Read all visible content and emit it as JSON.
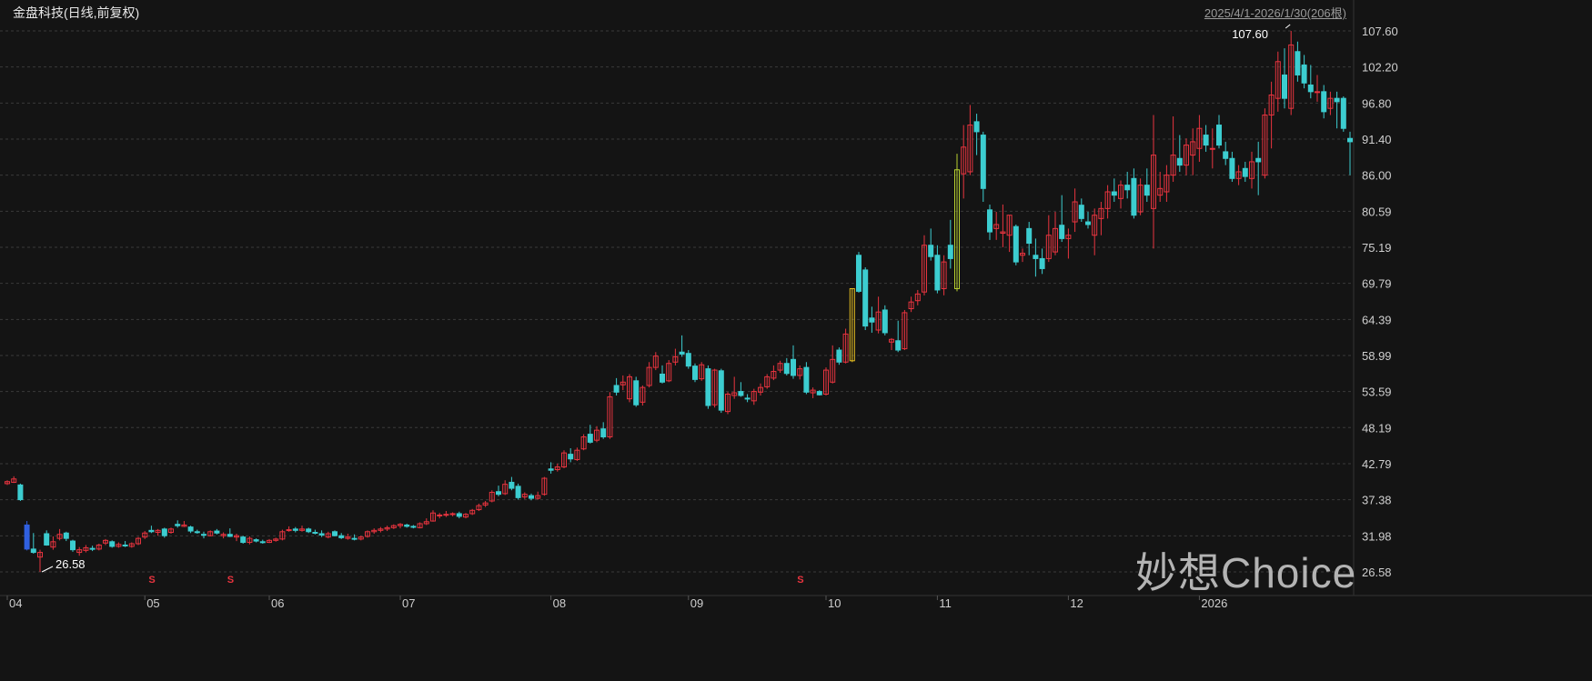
{
  "chart_data": {
    "type": "candlestick",
    "title": "金盘科技(日线,前复权)",
    "range_label": "2025/4/1-2026/1/30(206根)",
    "y_ticks": [
      "107.60",
      "102.20",
      "96.80",
      "91.40",
      "86.00",
      "80.59",
      "75.19",
      "69.79",
      "64.39",
      "58.99",
      "53.59",
      "48.19",
      "42.79",
      "37.38",
      "31.98",
      "26.58"
    ],
    "ylim": [
      26.58,
      107.6
    ],
    "x_tick_labels": [
      "04",
      "05",
      "06",
      "07",
      "08",
      "09",
      "10",
      "11",
      "12",
      "2026"
    ],
    "grid": true,
    "max_label": "107.60",
    "min_label": "26.58",
    "colors": {
      "up": "#e8343f",
      "down": "#3ccdd0",
      "special_blue": "#3060e0",
      "special_yellow": "#e8c020",
      "special_lime": "#b8d030",
      "grid": "#3a3a3a",
      "background": "#141414"
    },
    "special_candles": {
      "3": "special_blue",
      "129": "special_yellow",
      "145": "special_lime"
    },
    "signal_marker": "S",
    "ohlc": [
      [
        39.8,
        40.3,
        39.6,
        40.1
      ],
      [
        40.0,
        40.9,
        39.9,
        40.5
      ],
      [
        39.6,
        39.8,
        37.2,
        37.4
      ],
      [
        33.6,
        34.2,
        29.8,
        30.0
      ],
      [
        30.0,
        32.4,
        29.3,
        29.5
      ],
      [
        28.8,
        29.9,
        26.58,
        29.5
      ],
      [
        32.3,
        32.8,
        30.5,
        30.6
      ],
      [
        30.3,
        31.9,
        29.9,
        31.1
      ],
      [
        31.6,
        33.0,
        31.3,
        32.2
      ],
      [
        32.4,
        32.6,
        31.2,
        31.6
      ],
      [
        31.2,
        31.4,
        29.6,
        29.9
      ],
      [
        29.5,
        30.3,
        29.0,
        29.9
      ],
      [
        29.8,
        30.6,
        29.5,
        30.2
      ],
      [
        30.1,
        30.5,
        29.7,
        30.0
      ],
      [
        30.0,
        30.8,
        29.8,
        30.6
      ],
      [
        30.9,
        31.5,
        30.6,
        31.3
      ],
      [
        31.1,
        31.3,
        30.2,
        30.4
      ],
      [
        30.4,
        31.0,
        30.2,
        30.7
      ],
      [
        30.6,
        31.2,
        30.3,
        30.5
      ],
      [
        30.4,
        31.0,
        30.2,
        30.8
      ],
      [
        30.8,
        31.8,
        30.6,
        31.6
      ],
      [
        31.8,
        32.7,
        31.5,
        32.4
      ],
      [
        32.8,
        33.5,
        32.4,
        32.6
      ],
      [
        32.5,
        33.0,
        32.0,
        32.8
      ],
      [
        33.0,
        33.2,
        31.7,
        32.0
      ],
      [
        32.5,
        33.2,
        32.3,
        33.0
      ],
      [
        33.7,
        34.3,
        33.2,
        33.5
      ],
      [
        33.4,
        34.2,
        33.3,
        33.6
      ],
      [
        33.3,
        33.5,
        32.4,
        32.7
      ],
      [
        32.6,
        32.9,
        32.3,
        32.5
      ],
      [
        32.2,
        32.6,
        31.6,
        32.1
      ],
      [
        32.0,
        32.8,
        31.9,
        32.6
      ],
      [
        32.7,
        33.0,
        32.2,
        32.4
      ],
      [
        32.0,
        32.5,
        31.6,
        32.2
      ],
      [
        32.2,
        33.1,
        31.8,
        31.9
      ],
      [
        31.8,
        32.3,
        31.2,
        32.0
      ],
      [
        31.8,
        32.0,
        30.8,
        31.0
      ],
      [
        31.0,
        31.9,
        30.7,
        31.6
      ],
      [
        31.4,
        31.6,
        31.0,
        31.2
      ],
      [
        31.1,
        31.4,
        30.8,
        31.0
      ],
      [
        31.0,
        31.5,
        30.9,
        31.3
      ],
      [
        31.3,
        31.7,
        31.1,
        31.5
      ],
      [
        31.5,
        32.9,
        31.3,
        32.6
      ],
      [
        32.8,
        33.4,
        32.6,
        32.9
      ],
      [
        33.0,
        33.3,
        32.5,
        32.8
      ],
      [
        32.8,
        33.5,
        32.6,
        33.0
      ],
      [
        33.0,
        33.2,
        32.4,
        32.6
      ],
      [
        32.5,
        32.9,
        32.2,
        32.4
      ],
      [
        32.3,
        32.8,
        31.8,
        32.1
      ],
      [
        31.8,
        32.6,
        31.6,
        32.3
      ],
      [
        32.6,
        32.8,
        31.9,
        32.0
      ],
      [
        32.0,
        32.4,
        31.5,
        31.7
      ],
      [
        31.6,
        32.3,
        31.4,
        31.8
      ],
      [
        31.6,
        32.2,
        31.3,
        31.5
      ],
      [
        31.5,
        32.0,
        31.3,
        31.8
      ],
      [
        31.9,
        32.8,
        31.7,
        32.6
      ],
      [
        32.6,
        33.1,
        32.3,
        32.8
      ],
      [
        32.8,
        33.3,
        32.5,
        33.0
      ],
      [
        33.0,
        33.5,
        32.7,
        33.2
      ],
      [
        33.2,
        33.7,
        33.0,
        33.5
      ],
      [
        33.5,
        33.9,
        33.1,
        33.7
      ],
      [
        33.6,
        33.8,
        33.2,
        33.4
      ],
      [
        33.4,
        33.6,
        33.1,
        33.3
      ],
      [
        33.2,
        34.0,
        33.1,
        33.8
      ],
      [
        33.8,
        34.6,
        33.6,
        34.1
      ],
      [
        34.2,
        35.8,
        34.1,
        35.4
      ],
      [
        35.0,
        35.4,
        34.6,
        35.1
      ],
      [
        35.1,
        35.7,
        34.8,
        35.2
      ],
      [
        35.2,
        35.5,
        34.9,
        35.3
      ],
      [
        35.3,
        35.6,
        34.6,
        34.9
      ],
      [
        34.8,
        35.4,
        34.6,
        35.2
      ],
      [
        35.3,
        36.0,
        35.1,
        35.8
      ],
      [
        35.9,
        36.8,
        35.7,
        36.5
      ],
      [
        36.6,
        37.2,
        36.3,
        36.9
      ],
      [
        37.2,
        38.8,
        37.0,
        38.5
      ],
      [
        38.6,
        39.5,
        37.9,
        38.2
      ],
      [
        38.3,
        40.3,
        38.1,
        39.7
      ],
      [
        40.0,
        40.8,
        38.8,
        39.1
      ],
      [
        39.4,
        39.8,
        37.4,
        37.7
      ],
      [
        37.8,
        38.5,
        37.5,
        38.2
      ],
      [
        38.0,
        38.3,
        37.3,
        37.6
      ],
      [
        37.6,
        38.6,
        37.4,
        38.0
      ],
      [
        38.2,
        40.8,
        38.0,
        40.6
      ],
      [
        42.0,
        43.0,
        41.3,
        41.8
      ],
      [
        41.9,
        42.8,
        41.6,
        42.3
      ],
      [
        42.3,
        44.8,
        42.1,
        44.4
      ],
      [
        44.2,
        45.1,
        43.0,
        43.5
      ],
      [
        43.4,
        45.2,
        43.2,
        44.8
      ],
      [
        45.0,
        47.2,
        44.8,
        46.8
      ],
      [
        47.2,
        48.6,
        45.8,
        46.0
      ],
      [
        46.3,
        48.4,
        46.0,
        47.8
      ],
      [
        48.0,
        49.0,
        46.5,
        46.8
      ],
      [
        46.8,
        53.5,
        46.5,
        52.8
      ],
      [
        54.5,
        55.6,
        53.0,
        53.5
      ],
      [
        54.6,
        56.0,
        53.8,
        55.0
      ],
      [
        52.5,
        56.2,
        52.0,
        55.8
      ],
      [
        55.2,
        55.8,
        51.3,
        51.6
      ],
      [
        52.0,
        54.5,
        51.5,
        54.2
      ],
      [
        54.5,
        58.0,
        54.2,
        57.2
      ],
      [
        57.2,
        59.5,
        56.8,
        58.9
      ],
      [
        56.2,
        57.5,
        54.8,
        55.0
      ],
      [
        55.2,
        58.3,
        55.0,
        57.8
      ],
      [
        58.0,
        60.0,
        57.5,
        58.8
      ],
      [
        59.5,
        62.0,
        58.8,
        59.2
      ],
      [
        59.3,
        59.8,
        57.0,
        57.4
      ],
      [
        57.4,
        57.8,
        55.0,
        55.4
      ],
      [
        55.5,
        58.0,
        55.2,
        57.6
      ],
      [
        57.0,
        57.5,
        51.0,
        51.5
      ],
      [
        51.6,
        57.0,
        51.2,
        56.8
      ],
      [
        56.7,
        57.0,
        50.4,
        50.8
      ],
      [
        50.6,
        53.5,
        50.2,
        53.2
      ],
      [
        53.0,
        55.8,
        52.5,
        53.4
      ],
      [
        53.6,
        55.0,
        52.8,
        53.0
      ],
      [
        52.6,
        53.2,
        52.0,
        52.5
      ],
      [
        52.2,
        54.0,
        51.6,
        53.6
      ],
      [
        53.5,
        54.8,
        53.0,
        54.2
      ],
      [
        54.3,
        56.2,
        54.0,
        55.8
      ],
      [
        55.6,
        57.5,
        55.3,
        56.6
      ],
      [
        56.8,
        58.2,
        56.4,
        57.8
      ],
      [
        57.8,
        58.6,
        56.0,
        56.3
      ],
      [
        58.4,
        60.5,
        55.5,
        56.0
      ],
      [
        56.0,
        57.5,
        55.4,
        57.0
      ],
      [
        57.2,
        58.0,
        53.2,
        53.5
      ],
      [
        53.4,
        54.2,
        52.6,
        53.8
      ],
      [
        53.6,
        53.8,
        53.0,
        53.1
      ],
      [
        53.2,
        57.2,
        53.0,
        56.8
      ],
      [
        55.0,
        60.5,
        54.8,
        58.4
      ],
      [
        59.8,
        60.2,
        57.6,
        58.0
      ],
      [
        58.0,
        63.0,
        57.8,
        62.2
      ],
      [
        58.2,
        69.0,
        58.0,
        69.0
      ],
      [
        74.0,
        74.5,
        68.4,
        68.6
      ],
      [
        71.8,
        72.2,
        62.8,
        63.4
      ],
      [
        64.6,
        66.3,
        62.4,
        64.0
      ],
      [
        62.8,
        67.8,
        62.3,
        65.5
      ],
      [
        65.8,
        66.5,
        62.0,
        62.4
      ],
      [
        61.0,
        61.6,
        59.8,
        61.4
      ],
      [
        61.2,
        64.2,
        59.5,
        59.8
      ],
      [
        60.0,
        65.8,
        59.8,
        65.4
      ],
      [
        66.0,
        67.8,
        65.5,
        67.0
      ],
      [
        67.2,
        68.8,
        66.5,
        68.2
      ],
      [
        68.5,
        77.0,
        68.0,
        75.5
      ],
      [
        75.5,
        78.0,
        73.2,
        73.8
      ],
      [
        74.0,
        75.5,
        68.3,
        68.8
      ],
      [
        69.0,
        74.0,
        68.0,
        73.0
      ],
      [
        75.5,
        79.3,
        72.0,
        73.5
      ],
      [
        69.0,
        89.2,
        68.6,
        86.8
      ],
      [
        86.2,
        93.5,
        82.5,
        90.2
      ],
      [
        86.5,
        96.5,
        86.0,
        93.5
      ],
      [
        94.0,
        95.2,
        89.0,
        92.5
      ],
      [
        92.0,
        92.5,
        82.0,
        84.0
      ],
      [
        80.8,
        81.6,
        76.3,
        77.5
      ],
      [
        78.0,
        80.5,
        76.3,
        78.6
      ],
      [
        77.3,
        81.6,
        75.2,
        77.5
      ],
      [
        77.0,
        80.0,
        74.5,
        80.0
      ],
      [
        78.3,
        78.6,
        72.5,
        73.0
      ],
      [
        74.0,
        75.0,
        73.0,
        74.3
      ],
      [
        78.0,
        79.0,
        74.0,
        75.8
      ],
      [
        74.0,
        76.5,
        70.8,
        73.5
      ],
      [
        73.5,
        75.0,
        71.2,
        72.0
      ],
      [
        73.5,
        80.0,
        73.0,
        77.0
      ],
      [
        74.5,
        80.5,
        74.0,
        78.0
      ],
      [
        78.5,
        83.0,
        76.0,
        76.5
      ],
      [
        76.5,
        78.0,
        73.5,
        77.0
      ],
      [
        79.0,
        84.0,
        77.5,
        82.0
      ],
      [
        81.5,
        82.5,
        79.0,
        79.5
      ],
      [
        79.0,
        80.5,
        78.0,
        78.6
      ],
      [
        77.0,
        81.0,
        74.0,
        80.0
      ],
      [
        79.5,
        82.0,
        77.0,
        81.0
      ],
      [
        81.0,
        84.5,
        79.5,
        83.5
      ],
      [
        83.5,
        85.5,
        82.0,
        83.0
      ],
      [
        82.5,
        85.2,
        81.0,
        84.5
      ],
      [
        84.5,
        86.5,
        82.5,
        83.8
      ],
      [
        85.5,
        87.0,
        79.5,
        80.0
      ],
      [
        80.5,
        85.5,
        80.0,
        84.5
      ],
      [
        84.5,
        87.0,
        82.0,
        83.0
      ],
      [
        81.0,
        95.0,
        75.0,
        89.0
      ],
      [
        83.0,
        86.5,
        82.0,
        84.0
      ],
      [
        83.5,
        87.5,
        82.0,
        86.0
      ],
      [
        86.0,
        94.8,
        85.0,
        89.0
      ],
      [
        88.5,
        92.0,
        86.5,
        87.5
      ],
      [
        87.5,
        91.5,
        86.0,
        90.5
      ],
      [
        89.0,
        93.0,
        86.0,
        91.0
      ],
      [
        90.0,
        95.0,
        88.0,
        93.0
      ],
      [
        92.0,
        93.5,
        89.5,
        90.5
      ],
      [
        90.0,
        93.0,
        87.0,
        90.0
      ],
      [
        93.5,
        95.0,
        90.0,
        90.5
      ],
      [
        89.5,
        91.0,
        87.5,
        88.5
      ],
      [
        88.5,
        89.5,
        85.0,
        85.5
      ],
      [
        85.5,
        87.5,
        84.5,
        86.5
      ],
      [
        87.0,
        88.0,
        85.0,
        85.8
      ],
      [
        85.5,
        89.5,
        84.0,
        88.0
      ],
      [
        88.5,
        91.0,
        83.0,
        88.0
      ],
      [
        86.0,
        96.0,
        85.5,
        95.0
      ],
      [
        95.0,
        100.0,
        90.0,
        98.0
      ],
      [
        97.5,
        104.5,
        95.5,
        103.0
      ],
      [
        101.0,
        105.0,
        96.0,
        97.5
      ],
      [
        96.0,
        107.6,
        95.0,
        105.5
      ],
      [
        104.5,
        106.0,
        100.0,
        101.0
      ],
      [
        102.5,
        104.0,
        99.0,
        99.8
      ],
      [
        99.5,
        102.5,
        97.5,
        98.5
      ],
      [
        98.5,
        101.0,
        97.0,
        98.5
      ],
      [
        98.5,
        99.5,
        94.5,
        95.5
      ],
      [
        96.0,
        98.5,
        95.0,
        97.5
      ],
      [
        97.5,
        98.5,
        93.0,
        97.0
      ],
      [
        97.5,
        97.8,
        92.5,
        93.0
      ],
      [
        91.5,
        92.5,
        86.0,
        91.0
      ]
    ]
  },
  "watermark": "妙想Choice"
}
